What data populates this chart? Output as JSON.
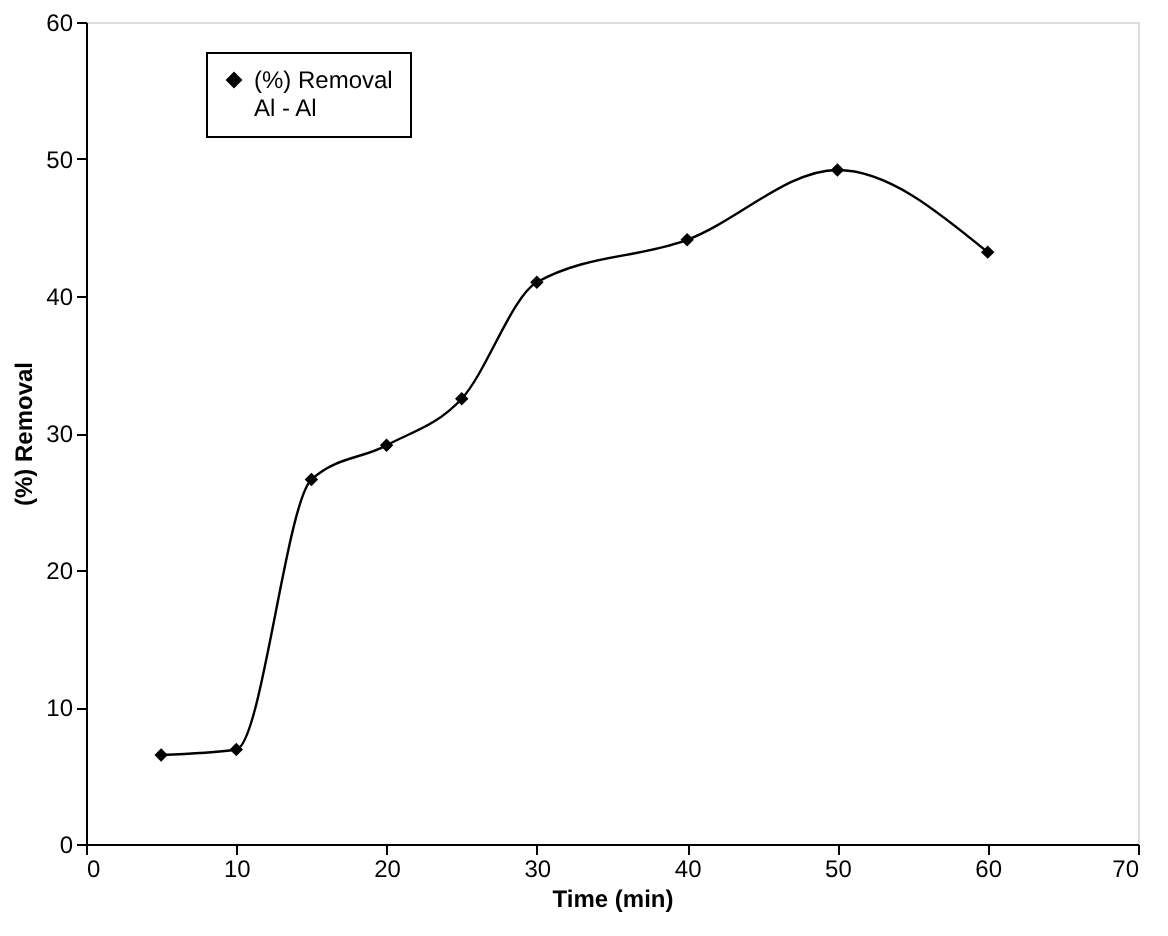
{
  "chart_data": {
    "type": "line",
    "xlabel": "Time (min)",
    "ylabel": "(%) Removal",
    "x": [
      5,
      10,
      15,
      20,
      25,
      30,
      40,
      50,
      60
    ],
    "series": [
      {
        "name": "(%) Removal\nAl - Al",
        "color": "#000000",
        "values": [
          6.5,
          6.9,
          26.6,
          29.1,
          32.5,
          41.0,
          44.1,
          49.2,
          43.2
        ]
      }
    ],
    "xlim": [
      0,
      70
    ],
    "xticks": [
      0,
      10,
      20,
      30,
      40,
      50,
      60,
      70
    ],
    "ylim": [
      0,
      60
    ],
    "yticks": [
      0,
      10,
      20,
      30,
      40,
      50,
      60
    ],
    "grid": false,
    "legend": "top left",
    "marker": "diamond",
    "line_style": "solid"
  }
}
